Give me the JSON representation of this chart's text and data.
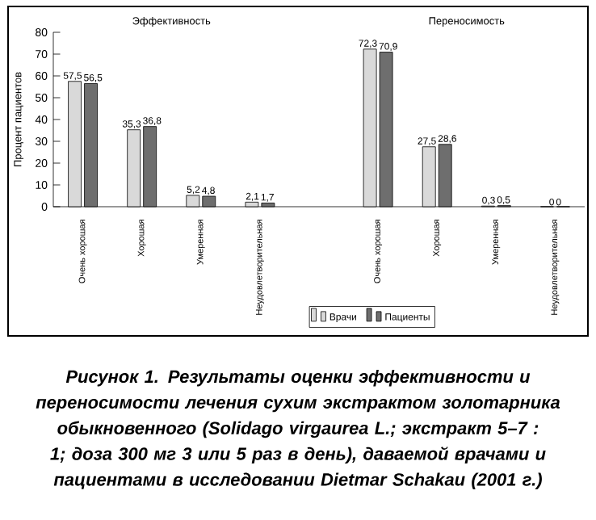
{
  "chart_data": {
    "type": "bar",
    "title": "Рисунок 1. Результаты оценки эффективности и переносимости лечения сухим экстрактом золотарника обыкновенного (Solidago virgaurea L.; экстракт 5–7 : 1; доза 300 мг 3 или 5 раз в день), даваемой врачами и пациентами в исследовании Dietmar Schakau (2001 г.)",
    "ylabel": "Процент пациентов",
    "annotations": [
      "Эффективность",
      "Переносимость"
    ],
    "categories": [
      "Очень хорошая",
      "Хорошая",
      "Умеренная",
      "Неудовлетворительная",
      null,
      "Очень хорошая",
      "Хорошая",
      "Умеренная",
      "Неудовлетворительная"
    ],
    "series": [
      {
        "name": "Врачи",
        "color": "#d9d9d9",
        "values": [
          57.5,
          35.3,
          5.2,
          2.1,
          null,
          72.3,
          27.5,
          0.3,
          0
        ],
        "value_labels": [
          "57,5",
          "35,3",
          "5,2",
          "2,1",
          null,
          "72,3",
          "27,5",
          "0,3",
          "0"
        ]
      },
      {
        "name": "Пациенты",
        "color": "#6e6e6e",
        "values": [
          56.5,
          36.8,
          4.8,
          1.7,
          null,
          70.9,
          28.6,
          0.5,
          0
        ],
        "value_labels": [
          "56,5",
          "36,8",
          "4,8",
          "1,7",
          null,
          "70,9",
          "28,6",
          "0,5",
          "0"
        ]
      }
    ],
    "ylim": [
      0,
      80
    ],
    "yticks": [
      0,
      10,
      20,
      30,
      40,
      50,
      60,
      70,
      80
    ],
    "legend": "bottom"
  }
}
